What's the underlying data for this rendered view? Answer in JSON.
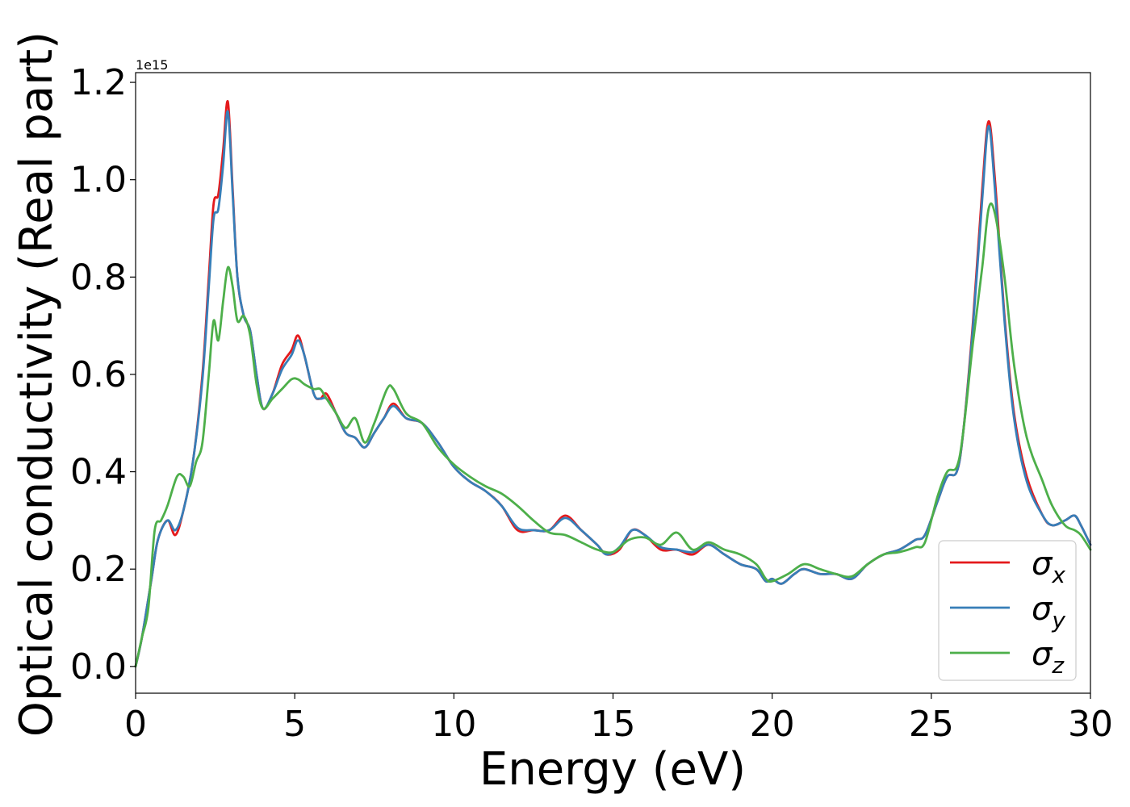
{
  "chart_data": {
    "type": "line",
    "xlabel": "Energy (eV)",
    "ylabel": "Optical conductivity (Real part)",
    "y_offset_label": "1e15",
    "xlim": [
      0,
      30
    ],
    "ylim": [
      -0.055,
      1.22
    ],
    "xticks": [
      "0",
      "5",
      "10",
      "15",
      "20",
      "25",
      "30"
    ],
    "yticks": [
      "0.0",
      "0.2",
      "0.4",
      "0.6",
      "0.8",
      "1.0",
      "1.2"
    ],
    "grid": false,
    "legend_position": "lower-right",
    "series": [
      {
        "name": "σ",
        "subscript": "x",
        "color": "#e41a1c",
        "x": [
          0,
          0.2,
          0.5,
          0.7,
          1.0,
          1.25,
          1.5,
          1.8,
          2.1,
          2.3,
          2.45,
          2.6,
          2.75,
          2.9,
          3.05,
          3.2,
          3.4,
          3.6,
          3.8,
          4.0,
          4.3,
          4.6,
          4.9,
          5.1,
          5.3,
          5.6,
          5.8,
          6.0,
          6.3,
          6.6,
          6.9,
          7.2,
          7.5,
          7.8,
          8.1,
          8.5,
          9.0,
          9.5,
          10.0,
          10.5,
          11.0,
          11.5,
          12.0,
          12.5,
          13.0,
          13.5,
          14.0,
          14.5,
          14.8,
          15.2,
          15.6,
          16.0,
          16.5,
          17.0,
          17.5,
          18.0,
          18.5,
          19.0,
          19.5,
          19.8,
          20.0,
          20.3,
          20.7,
          21.0,
          21.5,
          22.0,
          22.5,
          23.0,
          23.5,
          24.0,
          24.5,
          24.8,
          25.2,
          25.5,
          25.8,
          26.0,
          26.3,
          26.6,
          26.8,
          27.0,
          27.3,
          27.6,
          28.0,
          28.5,
          28.8,
          29.2,
          29.5,
          29.7,
          30.0
        ],
        "values": [
          0,
          0.06,
          0.18,
          0.26,
          0.3,
          0.27,
          0.32,
          0.42,
          0.6,
          0.8,
          0.95,
          0.97,
          1.06,
          1.16,
          0.98,
          0.8,
          0.72,
          0.69,
          0.6,
          0.53,
          0.56,
          0.62,
          0.65,
          0.68,
          0.64,
          0.56,
          0.55,
          0.56,
          0.52,
          0.48,
          0.47,
          0.45,
          0.48,
          0.51,
          0.54,
          0.51,
          0.5,
          0.46,
          0.41,
          0.38,
          0.36,
          0.33,
          0.28,
          0.28,
          0.28,
          0.31,
          0.28,
          0.25,
          0.23,
          0.24,
          0.28,
          0.27,
          0.24,
          0.24,
          0.23,
          0.25,
          0.23,
          0.21,
          0.2,
          0.175,
          0.18,
          0.17,
          0.19,
          0.2,
          0.19,
          0.19,
          0.18,
          0.21,
          0.23,
          0.24,
          0.26,
          0.27,
          0.34,
          0.39,
          0.4,
          0.48,
          0.7,
          0.98,
          1.12,
          1.0,
          0.72,
          0.52,
          0.39,
          0.31,
          0.29,
          0.3,
          0.31,
          0.29,
          0.25
        ]
      },
      {
        "name": "σ",
        "subscript": "y",
        "color": "#377eb8",
        "x": [
          0,
          0.2,
          0.5,
          0.7,
          1.0,
          1.25,
          1.5,
          1.8,
          2.1,
          2.3,
          2.45,
          2.6,
          2.75,
          2.9,
          3.05,
          3.2,
          3.4,
          3.6,
          3.8,
          4.0,
          4.3,
          4.6,
          4.9,
          5.1,
          5.3,
          5.6,
          5.8,
          6.0,
          6.3,
          6.6,
          6.9,
          7.2,
          7.5,
          7.8,
          8.1,
          8.5,
          9.0,
          9.5,
          10.0,
          10.5,
          11.0,
          11.5,
          12.0,
          12.5,
          13.0,
          13.5,
          14.0,
          14.5,
          14.8,
          15.2,
          15.6,
          16.0,
          16.5,
          17.0,
          17.5,
          18.0,
          18.5,
          19.0,
          19.5,
          19.8,
          20.0,
          20.3,
          20.7,
          21.0,
          21.5,
          22.0,
          22.5,
          23.0,
          23.5,
          24.0,
          24.5,
          24.8,
          25.2,
          25.5,
          25.8,
          26.0,
          26.3,
          26.6,
          26.8,
          27.0,
          27.3,
          27.6,
          28.0,
          28.5,
          28.8,
          29.2,
          29.5,
          29.7,
          30.0
        ],
        "values": [
          0,
          0.06,
          0.18,
          0.26,
          0.3,
          0.28,
          0.32,
          0.42,
          0.59,
          0.78,
          0.92,
          0.94,
          1.03,
          1.14,
          0.97,
          0.8,
          0.72,
          0.69,
          0.6,
          0.53,
          0.56,
          0.61,
          0.64,
          0.67,
          0.64,
          0.56,
          0.55,
          0.55,
          0.52,
          0.48,
          0.47,
          0.45,
          0.48,
          0.51,
          0.535,
          0.51,
          0.5,
          0.46,
          0.41,
          0.38,
          0.36,
          0.33,
          0.285,
          0.28,
          0.28,
          0.305,
          0.28,
          0.25,
          0.23,
          0.245,
          0.28,
          0.27,
          0.245,
          0.24,
          0.235,
          0.25,
          0.23,
          0.21,
          0.2,
          0.175,
          0.18,
          0.17,
          0.19,
          0.2,
          0.19,
          0.19,
          0.18,
          0.21,
          0.23,
          0.24,
          0.26,
          0.27,
          0.34,
          0.39,
          0.4,
          0.48,
          0.69,
          0.96,
          1.11,
          0.98,
          0.71,
          0.51,
          0.38,
          0.31,
          0.29,
          0.3,
          0.31,
          0.29,
          0.25
        ]
      },
      {
        "name": "σ",
        "subscript": "z",
        "color": "#4daf4a",
        "x": [
          0,
          0.2,
          0.4,
          0.6,
          0.8,
          1.0,
          1.3,
          1.5,
          1.7,
          1.9,
          2.1,
          2.3,
          2.45,
          2.6,
          2.75,
          2.9,
          3.05,
          3.2,
          3.4,
          3.6,
          3.8,
          4.0,
          4.3,
          4.6,
          4.9,
          5.1,
          5.3,
          5.6,
          5.8,
          6.0,
          6.3,
          6.6,
          6.9,
          7.2,
          7.5,
          7.9,
          8.1,
          8.5,
          9.0,
          9.5,
          10.0,
          10.5,
          11.0,
          11.5,
          12.0,
          12.5,
          13.0,
          13.5,
          14.0,
          14.5,
          15.0,
          15.5,
          16.0,
          16.5,
          17.0,
          17.5,
          18.0,
          18.5,
          19.0,
          19.5,
          19.8,
          20.0,
          20.5,
          21.0,
          21.5,
          22.0,
          22.5,
          23.0,
          23.5,
          24.0,
          24.5,
          24.8,
          25.2,
          25.5,
          25.8,
          26.0,
          26.3,
          26.6,
          26.8,
          27.0,
          27.3,
          27.6,
          28.0,
          28.5,
          28.8,
          29.2,
          29.5,
          29.7,
          30.0
        ],
        "values": [
          0,
          0.06,
          0.12,
          0.28,
          0.3,
          0.33,
          0.39,
          0.39,
          0.37,
          0.42,
          0.46,
          0.6,
          0.71,
          0.67,
          0.75,
          0.82,
          0.78,
          0.71,
          0.72,
          0.68,
          0.58,
          0.53,
          0.55,
          0.57,
          0.59,
          0.59,
          0.58,
          0.57,
          0.57,
          0.55,
          0.52,
          0.49,
          0.51,
          0.46,
          0.5,
          0.57,
          0.57,
          0.52,
          0.5,
          0.45,
          0.415,
          0.39,
          0.37,
          0.355,
          0.33,
          0.3,
          0.275,
          0.27,
          0.255,
          0.24,
          0.235,
          0.26,
          0.265,
          0.25,
          0.275,
          0.24,
          0.255,
          0.24,
          0.23,
          0.21,
          0.18,
          0.175,
          0.19,
          0.21,
          0.2,
          0.19,
          0.185,
          0.21,
          0.23,
          0.235,
          0.245,
          0.255,
          0.35,
          0.4,
          0.41,
          0.48,
          0.66,
          0.82,
          0.94,
          0.93,
          0.8,
          0.62,
          0.47,
          0.38,
          0.33,
          0.29,
          0.28,
          0.27,
          0.24
        ]
      }
    ]
  }
}
